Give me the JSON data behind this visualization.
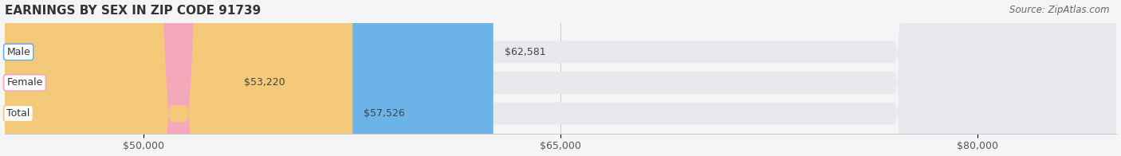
{
  "title": "EARNINGS BY SEX IN ZIP CODE 91739",
  "source": "Source: ZipAtlas.com",
  "categories": [
    "Male",
    "Female",
    "Total"
  ],
  "values": [
    62581,
    53220,
    57526
  ],
  "bar_colors": [
    "#6bb3e8",
    "#f4a8bc",
    "#f5c97a"
  ],
  "label_colors": [
    "#6bb3e8",
    "#f4a8bc",
    "#f5c97a"
  ],
  "bg_color": "#f5f5f5",
  "bar_bg_color": "#e8e8ee",
  "xmin": 45000,
  "xmax": 85000,
  "xticks": [
    50000,
    65000,
    80000
  ],
  "xtick_labels": [
    "$50,000",
    "$65,000",
    "$80,000"
  ],
  "title_fontsize": 11,
  "label_fontsize": 9,
  "value_fontsize": 9,
  "source_fontsize": 8.5
}
